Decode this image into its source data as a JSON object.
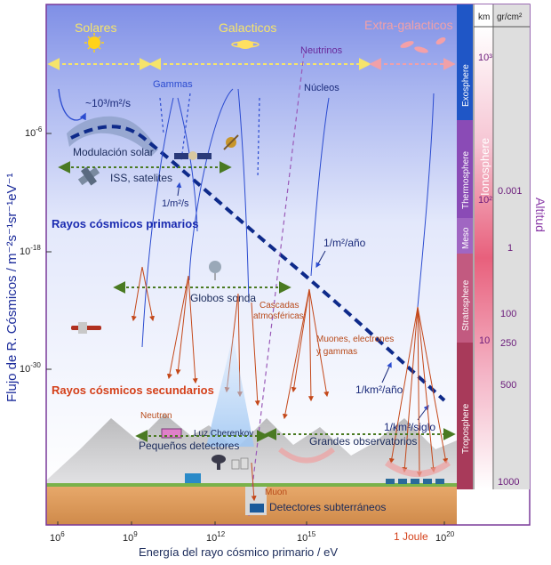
{
  "regions": {
    "solares": "Solares",
    "galacticos": "Galacticos",
    "extragalacticos": "Extra-galacticos"
  },
  "particles": {
    "neutrinos": "Neutrinos",
    "nucleos": "Núcleos",
    "gammas": "Gammas"
  },
  "flux_labels": {
    "top": "~10³/m²/s",
    "m2_s": "1/m²/s",
    "m2_year": "1/m²/año",
    "km2_year": "1/km²/año",
    "km2_century": "1/km²/siglo"
  },
  "annotations": {
    "modulacion": "Modulación solar",
    "iss": "ISS, satelites",
    "primarios": "Rayos cósmicos primarios",
    "globos": "Globos sonda",
    "cascadas_1": "Cascadas",
    "cascadas_2": "atmosféricas",
    "muones_1": "Muones, electrones",
    "muones_2": "y gammas",
    "secundarios": "Rayos cósmicos secundarios",
    "neutron": "Neutron",
    "cherenkov": "Luz Cherenkov",
    "pequenos": "Pequeños detectores",
    "grandes": "Grandes observatorios",
    "muon": "Muon",
    "subterraneos": "Detectores subterráneos",
    "joule": "1 Joule"
  },
  "axes": {
    "ylabel": "Flujo de R. Cósmicos / m⁻²s⁻¹sr⁻¹eV⁻¹",
    "xlabel": "Energía del rayo cósmico primario / eV",
    "yticks": [
      "10-6",
      "10-18",
      "10-30"
    ],
    "xticks": [
      "106",
      "109",
      "1012",
      "1015",
      "1020"
    ]
  },
  "atmosphere": {
    "layers": [
      "Exosphere",
      "Thermosphere",
      "Meso",
      "Stratosphere",
      "Troposphere"
    ],
    "ionosphere": "Ionosphere",
    "col_km": "km",
    "col_grcm2": "gr/cm²",
    "km_values": [
      "10³",
      "10²",
      "10"
    ],
    "grcm2_values": [
      "0.001",
      "1",
      "100",
      "250",
      "500",
      "1000"
    ],
    "altitud": "Altitud"
  },
  "colors": {
    "primary_blue": "#1a2a8c",
    "secondary_orange": "#d4521e",
    "green": "#4a7a22",
    "purple": "#7a3a9a"
  }
}
